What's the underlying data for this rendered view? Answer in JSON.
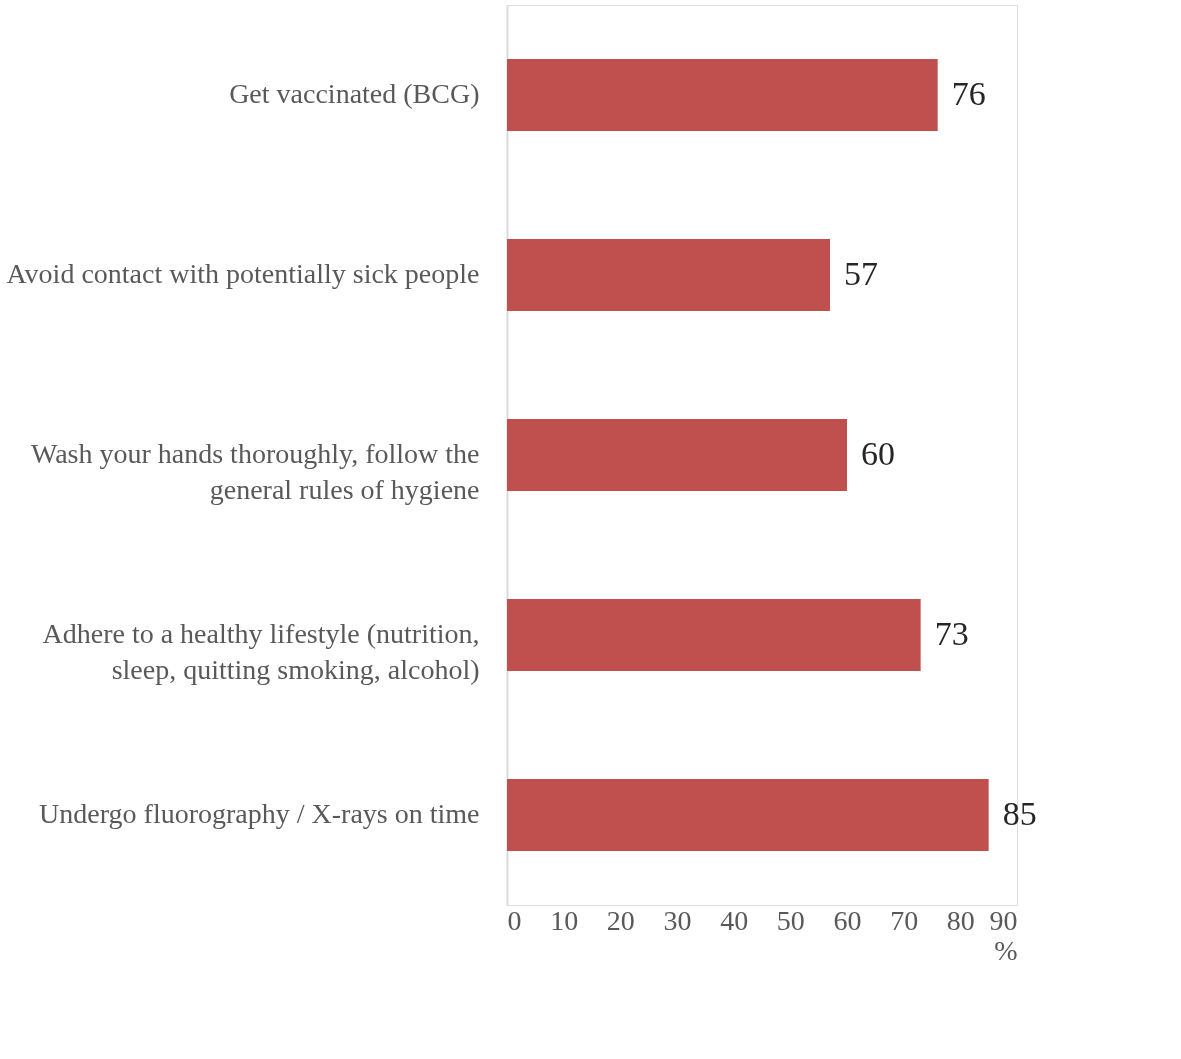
{
  "chart_data": {
    "type": "bar",
    "orientation": "horizontal",
    "xlabel": "%",
    "categories": [
      "Get vaccinated (BCG)",
      "Avoid contact with potentially sick people",
      "Wash your hands thoroughly, follow the general rules of hygiene",
      "Adhere to a healthy lifestyle (nutrition, sleep, quitting smoking, alcohol)",
      "Undergo fluorography / X-rays on time"
    ],
    "values": [
      76,
      57,
      60,
      73,
      85
    ],
    "color": "#c0504d",
    "xlim": [
      0,
      90
    ],
    "xticks": [
      0,
      10,
      20,
      30,
      40,
      50,
      60,
      70,
      80,
      90
    ],
    "data_labels": true,
    "grid": false
  }
}
